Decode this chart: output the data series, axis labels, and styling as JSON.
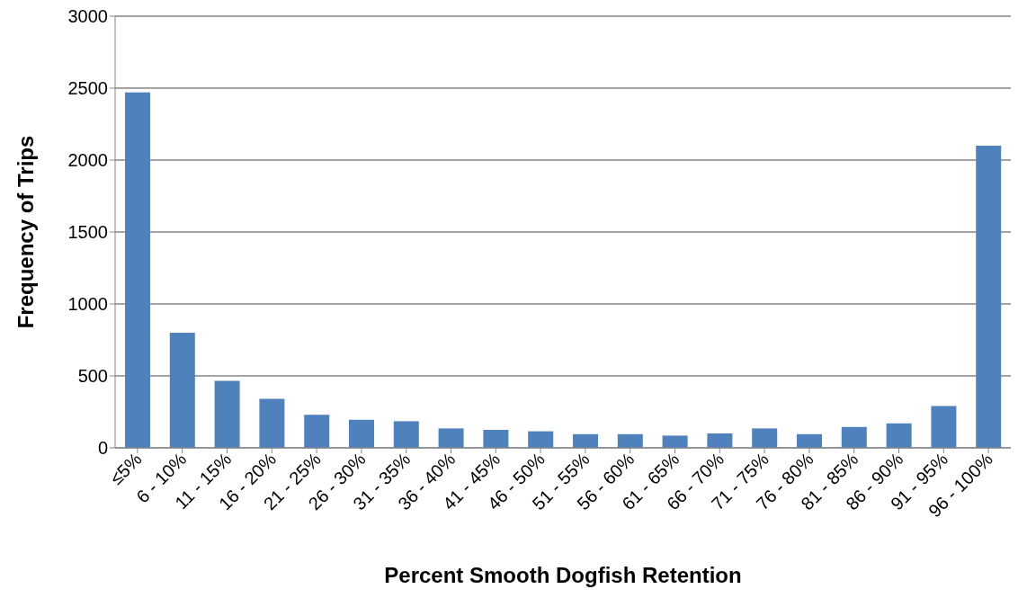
{
  "chart_data": {
    "type": "bar",
    "xlabel": "Percent Smooth Dogfish Retention",
    "ylabel": "Frequency of Trips",
    "categories": [
      "≤5%",
      "6 - 10%",
      "11 - 15%",
      "16 - 20%",
      "21 - 25%",
      "26 - 30%",
      "31 - 35%",
      "36 - 40%",
      "41 - 45%",
      "46 - 50%",
      "51 - 55%",
      "56 - 60%",
      "61 - 65%",
      "66 - 70%",
      "71 - 75%",
      "76 - 80%",
      "81 - 85%",
      "86 - 90%",
      "91 - 95%",
      "96 - 100%"
    ],
    "values": [
      2470,
      800,
      465,
      340,
      230,
      195,
      185,
      135,
      125,
      115,
      95,
      95,
      85,
      100,
      135,
      95,
      145,
      170,
      290,
      2100
    ],
    "color": "#4f81bd",
    "ylim": [
      0,
      3000
    ],
    "yticks": [
      0,
      500,
      1000,
      1500,
      2000,
      2500,
      3000
    ],
    "grid": "y",
    "legend": false
  }
}
